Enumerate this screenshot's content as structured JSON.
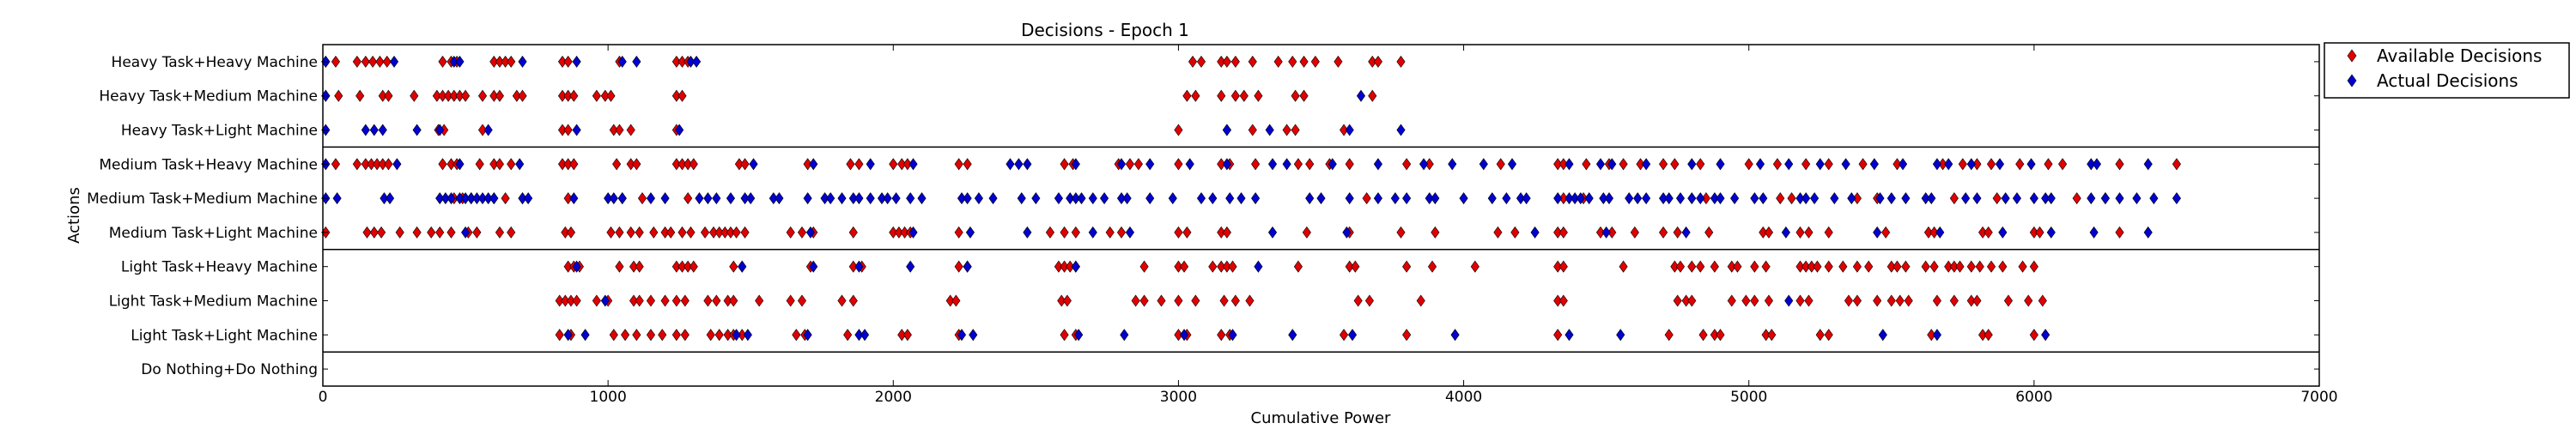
{
  "chart_data": {
    "type": "scatter",
    "title": "Decisions - Epoch 1",
    "xlabel": "Cumulative Power",
    "ylabel": "Actions",
    "xlim": [
      0,
      7000
    ],
    "xticks": [
      0,
      1000,
      2000,
      3000,
      4000,
      5000,
      6000,
      7000
    ],
    "categories": [
      "Heavy Task+Heavy Machine",
      "Heavy Task+Medium Machine",
      "Heavy Task+Light Machine",
      "Medium Task+Heavy Machine",
      "Medium Task+Medium Machine",
      "Medium Task+Light Machine",
      "Light Task+Heavy Machine",
      "Light Task+Medium Machine",
      "Light Task+Light Machine",
      "Do Nothing+Do Nothing"
    ],
    "group_separators_after": [
      2,
      5,
      8
    ],
    "legend": {
      "position": "outside-right-top"
    },
    "colors": {
      "available": "#e00000",
      "actual": "#0000d0"
    },
    "series": [
      {
        "name": "Available Decisions",
        "marker": "diamond",
        "points": {
          "Heavy Task+Heavy Machine": [
            10,
            45,
            120,
            150,
            175,
            200,
            225,
            420,
            450,
            470,
            600,
            620,
            640,
            660,
            840,
            860,
            1040,
            1240,
            1260,
            1280,
            3050,
            3080,
            3150,
            3170,
            3200,
            3260,
            3350,
            3400,
            3440,
            3480,
            3560,
            3680,
            3700,
            3780
          ],
          "Heavy Task+Medium Machine": [
            10,
            55,
            130,
            210,
            230,
            320,
            400,
            420,
            440,
            460,
            480,
            500,
            560,
            600,
            620,
            680,
            700,
            840,
            860,
            880,
            960,
            990,
            1010,
            1240,
            1260,
            3030,
            3060,
            3150,
            3200,
            3230,
            3280,
            3410,
            3440,
            3680
          ],
          "Heavy Task+Light Machine": [
            405,
            425,
            560,
            840,
            860,
            1020,
            1040,
            1080,
            1240,
            3000,
            3170,
            3260,
            3380,
            3410,
            3580
          ],
          "Medium Task+Heavy Machine": [
            45,
            120,
            150,
            170,
            190,
            210,
            230,
            420,
            450,
            470,
            550,
            600,
            620,
            660,
            840,
            860,
            880,
            1030,
            1080,
            1100,
            1240,
            1260,
            1280,
            1300,
            1460,
            1480,
            1700,
            1850,
            1880,
            2000,
            2030,
            2050,
            2230,
            2260,
            2600,
            2630,
            2790,
            2830,
            2860,
            3000,
            3150,
            3180,
            3270,
            3420,
            3460,
            3530,
            3600,
            3800,
            3880,
            4130,
            4330,
            4350,
            4430,
            4510,
            4560,
            4620,
            4700,
            4740,
            4830,
            5000,
            5100,
            5200,
            5280,
            5400,
            5520,
            5680,
            5750,
            5800,
            5850,
            5950,
            6050,
            6100,
            6300,
            6500
          ],
          "Medium Task+Medium Machine": [
            460,
            490,
            520,
            600,
            640,
            700,
            860,
            1050,
            1120,
            1280,
            3660,
            4350,
            4420,
            4850,
            5110,
            5150,
            5380,
            5450,
            5720,
            5870,
            6150,
            6250
          ],
          "Medium Task+Light Machine": [
            10,
            155,
            180,
            205,
            270,
            330,
            380,
            410,
            450,
            510,
            540,
            620,
            660,
            850,
            870,
            1010,
            1040,
            1080,
            1110,
            1160,
            1200,
            1220,
            1260,
            1290,
            1340,
            1370,
            1390,
            1410,
            1430,
            1450,
            1480,
            1640,
            1680,
            1720,
            1860,
            2000,
            2020,
            2040,
            2060,
            2230,
            2550,
            2600,
            2640,
            2760,
            2800,
            3000,
            3030,
            3150,
            3170,
            3450,
            3600,
            3780,
            3900,
            4120,
            4180,
            4330,
            4350,
            4480,
            4520,
            4600,
            4700,
            4750,
            4860,
            5050,
            5070,
            5180,
            5210,
            5280,
            5480,
            5630,
            5650,
            5820,
            5840,
            6000,
            6020,
            6300
          ],
          "Light Task+Heavy Machine": [
            860,
            880,
            900,
            1040,
            1090,
            1110,
            1240,
            1260,
            1280,
            1300,
            1440,
            1470,
            1710,
            1860,
            1890,
            2230,
            2260,
            2580,
            2600,
            2620,
            2640,
            2880,
            3000,
            3020,
            3120,
            3150,
            3170,
            3190,
            3420,
            3600,
            3620,
            3800,
            3890,
            4040,
            4330,
            4350,
            4560,
            4740,
            4760,
            4800,
            4830,
            4880,
            4940,
            4960,
            5020,
            5060,
            5180,
            5200,
            5220,
            5240,
            5280,
            5330,
            5380,
            5420,
            5500,
            5520,
            5550,
            5620,
            5650,
            5700,
            5720,
            5740,
            5780,
            5810,
            5850,
            5890,
            5960,
            6000
          ],
          "Light Task+Medium Machine": [
            830,
            850,
            870,
            890,
            960,
            1000,
            1090,
            1110,
            1150,
            1200,
            1240,
            1270,
            1350,
            1380,
            1420,
            1440,
            1530,
            1640,
            1680,
            1820,
            1860,
            2200,
            2220,
            2590,
            2610,
            2850,
            2880,
            2940,
            3000,
            3060,
            3160,
            3200,
            3250,
            3630,
            3670,
            3850,
            4330,
            4350,
            4750,
            4780,
            4800,
            4940,
            4990,
            5020,
            5070,
            5180,
            5210,
            5350,
            5380,
            5450,
            5500,
            5530,
            5560,
            5660,
            5720,
            5780,
            5800,
            5910,
            5980,
            6030
          ],
          "Light Task+Light Machine": [
            830,
            870,
            1020,
            1060,
            1100,
            1150,
            1190,
            1240,
            1270,
            1360,
            1390,
            1420,
            1440,
            1470,
            1660,
            1690,
            1840,
            2030,
            2050,
            2230,
            2600,
            2640,
            3000,
            3030,
            3150,
            3180,
            3580,
            3800,
            4330,
            4720,
            4840,
            4880,
            4900,
            5060,
            5080,
            5250,
            5280,
            5640,
            5820,
            5840,
            6000
          ],
          "Do Nothing+Do Nothing": []
        }
      },
      {
        "name": "Actual Decisions",
        "marker": "diamond",
        "points": {
          "Heavy Task+Heavy Machine": [
            10,
            250,
            460,
            480,
            700,
            890,
            1050,
            1100,
            1290,
            1310
          ],
          "Heavy Task+Medium Machine": [
            10,
            3640
          ],
          "Heavy Task+Light Machine": [
            10,
            150,
            180,
            210,
            330,
            410,
            580,
            890,
            1250,
            3170,
            3320,
            3600,
            3780
          ],
          "Medium Task+Heavy Machine": [
            10,
            260,
            480,
            690,
            1510,
            1720,
            1920,
            2070,
            2410,
            2440,
            2470,
            2640,
            2800,
            2900,
            3040,
            3170,
            3330,
            3380,
            3540,
            3700,
            3860,
            3960,
            4070,
            4170,
            4370,
            4480,
            4520,
            4640,
            4800,
            4900,
            5040,
            5140,
            5250,
            5340,
            5440,
            5540,
            5660,
            5700,
            5780,
            5880,
            5990,
            6200,
            6220,
            6400
          ],
          "Medium Task+Medium Machine": [
            10,
            50,
            215,
            235,
            410,
            430,
            450,
            480,
            500,
            520,
            540,
            560,
            580,
            600,
            700,
            720,
            880,
            1000,
            1020,
            1050,
            1150,
            1200,
            1320,
            1350,
            1380,
            1430,
            1480,
            1500,
            1580,
            1600,
            1700,
            1760,
            1780,
            1820,
            1860,
            1880,
            1920,
            1960,
            1980,
            2010,
            2060,
            2100,
            2240,
            2260,
            2300,
            2350,
            2450,
            2500,
            2580,
            2620,
            2640,
            2660,
            2700,
            2740,
            2800,
            2820,
            2900,
            2980,
            3080,
            3120,
            3180,
            3220,
            3270,
            3460,
            3500,
            3600,
            3700,
            3760,
            3800,
            3880,
            3900,
            4000,
            4100,
            4150,
            4200,
            4220,
            4330,
            4370,
            4390,
            4410,
            4440,
            4490,
            4510,
            4580,
            4610,
            4640,
            4700,
            4720,
            4760,
            4800,
            4830,
            4880,
            4900,
            4950,
            5020,
            5050,
            5180,
            5200,
            5230,
            5300,
            5360,
            5460,
            5500,
            5550,
            5620,
            5640,
            5760,
            5800,
            5900,
            5940,
            6000,
            6040,
            6060,
            6200,
            6250,
            6300,
            6360,
            6420,
            6500
          ],
          "Medium Task+Light Machine": [
            500,
            1710,
            2070,
            2270,
            2470,
            2700,
            2830,
            3330,
            3590,
            4250,
            4500,
            4780,
            5130,
            5450,
            5670,
            5890,
            6060,
            6210,
            6400
          ],
          "Light Task+Heavy Machine": [
            890,
            1470,
            1720,
            1880,
            2060,
            2260,
            2640,
            3280
          ],
          "Light Task+Medium Machine": [
            990,
            5140
          ],
          "Light Task+Light Machine": [
            860,
            920,
            1450,
            1490,
            1700,
            1880,
            1900,
            2240,
            2280,
            2650,
            2810,
            3020,
            3190,
            3400,
            3610,
            3970,
            4370,
            4550,
            5470,
            5660,
            6040
          ],
          "Do Nothing+Do Nothing": []
        }
      }
    ]
  }
}
